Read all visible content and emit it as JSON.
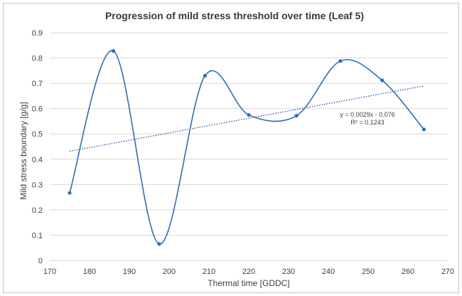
{
  "chart_data": {
    "type": "scatter",
    "title": "Progression of mild stress threshold over time (Leaf 5)",
    "xlabel": "Thermal time [GDDC]",
    "ylabel": "Mild stress boundary [g/g]",
    "xlim": [
      170,
      270
    ],
    "ylim": [
      0,
      0.9
    ],
    "xticks": [
      170,
      180,
      190,
      200,
      210,
      220,
      230,
      240,
      250,
      260,
      270
    ],
    "xtick_labels": [
      "170",
      "180",
      "190",
      "200",
      "210",
      "220",
      "230",
      "240",
      "250",
      "260",
      "270"
    ],
    "yticks": [
      0,
      0.1,
      0.2,
      0.3,
      0.4,
      0.5,
      0.6,
      0.7,
      0.8,
      0.9
    ],
    "ytick_labels": [
      "0",
      "0.1",
      "0.2",
      "0.3",
      "0.4",
      "0.5",
      "0.6",
      "0.7",
      "0.8",
      "0.9"
    ],
    "grid": "horizontal",
    "series": [
      {
        "style": "smoothed line with markers",
        "color": "#2e6db4",
        "x": [
          175,
          186,
          197.5,
          209,
          220,
          232,
          243,
          253.5,
          264
        ],
        "y": [
          0.267,
          0.828,
          0.065,
          0.73,
          0.575,
          0.572,
          0.788,
          0.712,
          0.518
        ]
      }
    ],
    "trendline": {
      "style": "dotted linear",
      "color": "#1f3d8a",
      "slope": 0.0029,
      "intercept": -0.076,
      "x_range": [
        175,
        264
      ],
      "equation": "y = 0.0029x - 0.076",
      "r_squared": "R² = 0.1243"
    }
  }
}
